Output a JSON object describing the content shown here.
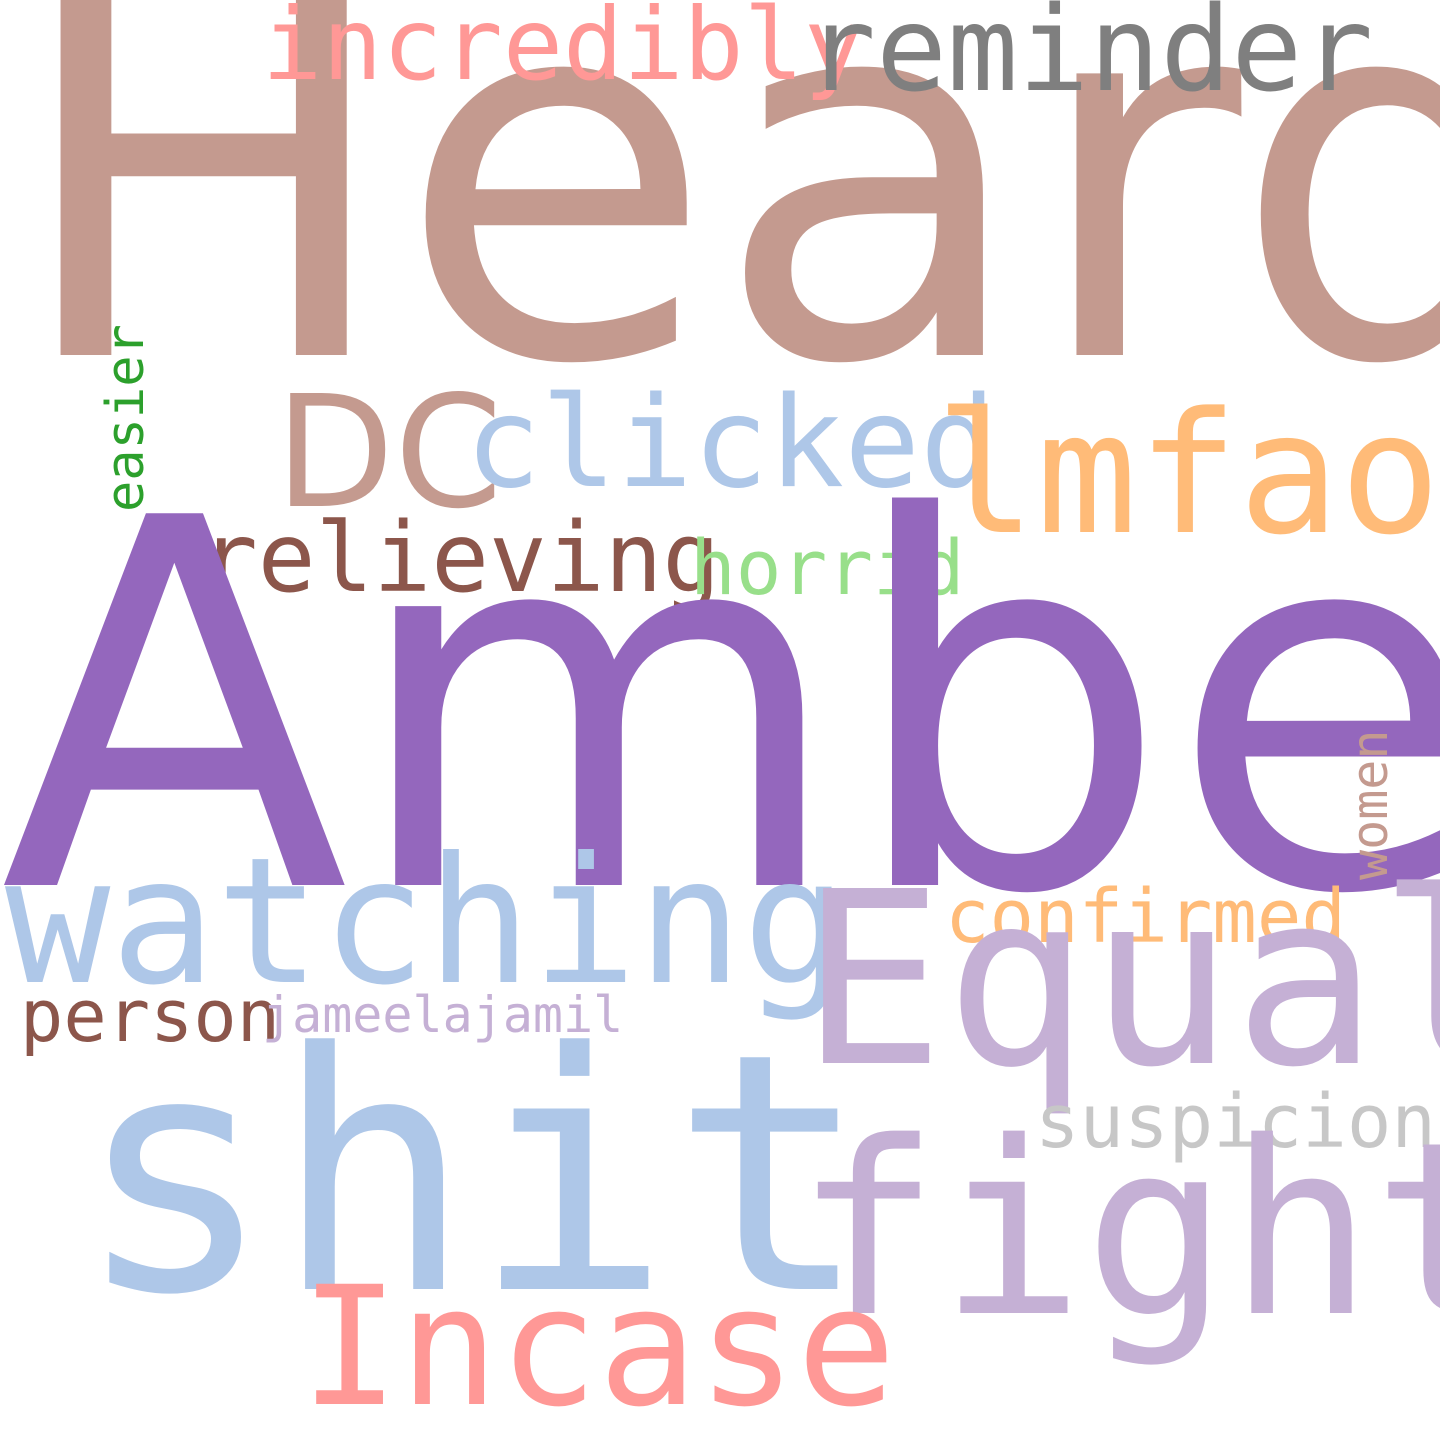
{
  "words": {
    "heard": {
      "text": "Heard",
      "color": "#c49a8f"
    },
    "amber": {
      "text": "Amber",
      "color": "#9467bd"
    },
    "shit": {
      "text": "shit",
      "color": "#aec7e8"
    },
    "equal": {
      "text": "Equal",
      "color": "#c5b0d5"
    },
    "fight": {
      "text": "fight",
      "color": "#c5b0d5"
    },
    "watching": {
      "text": "watching",
      "color": "#aec7e8"
    },
    "incase": {
      "text": "Incase",
      "color": "#ff9896"
    },
    "lmfao": {
      "text": "lmfao",
      "color": "#ffbb78"
    },
    "clicked": {
      "text": "clicked",
      "color": "#aec7e8"
    },
    "dc": {
      "text": "DC",
      "color": "#c49a8f"
    },
    "reminder": {
      "text": "reminder",
      "color": "#7f7f7f"
    },
    "incredibly": {
      "text": "incredibly",
      "color": "#ff9896"
    },
    "relieving": {
      "text": "relieving",
      "color": "#8c564b"
    },
    "horrid": {
      "text": "horrid",
      "color": "#98df8a"
    },
    "confirmed": {
      "text": "confirmed",
      "color": "#ffbb78"
    },
    "suspicions": {
      "text": "suspicions",
      "color": "#c7c7c7"
    },
    "person": {
      "text": "person",
      "color": "#8c564b"
    },
    "jameelajamil": {
      "text": "jameelajamil",
      "color": "#c5b0d5"
    },
    "easier": {
      "text": "easier",
      "color": "#2ca02c"
    },
    "women": {
      "text": "women",
      "color": "#c49a8f"
    }
  }
}
